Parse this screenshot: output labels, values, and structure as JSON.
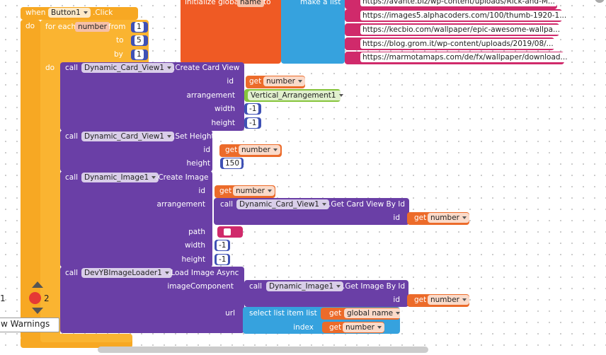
{
  "global_var": {
    "keyword": "initialize global",
    "name": "name",
    "to": "to",
    "make_list": "make a list",
    "items": [
      "https://avante.biz/wp-content/uploads/Rick-and-M...",
      "https://images5.alphacoders.com/100/thumb-1920-1...",
      "https://kecbio.com/wallpaper/epic-awesome-wallpa...",
      "https://blog.grom.it/wp-content/uploads/2019/08/...",
      "https://marmotamaps.com/de/fx/wallpaper/download..."
    ]
  },
  "event": {
    "when": "when",
    "component": "Button1",
    "event": ".Click",
    "do": "do"
  },
  "for_each": {
    "keyword": "for each",
    "variable": "number",
    "from_label": "from",
    "from": "1",
    "to_label": "to",
    "to": "5",
    "by_label": "by",
    "by": "1",
    "do": "do"
  },
  "create_card": {
    "call": "call",
    "component": "Dynamic_Card_View1",
    "method": ".Create Card View",
    "id_label": "id",
    "id_get": "get",
    "id_var": "number",
    "arrangement_label": "arrangement",
    "arrangement": "Vertical_Arrangement1",
    "width_label": "width",
    "width": "-1",
    "height_label": "height",
    "height": "-1"
  },
  "set_height": {
    "call": "call",
    "component": "Dynamic_Card_View1",
    "method": ".Set Height",
    "id_label": "id",
    "id_get": "get",
    "id_var": "number",
    "height_label": "height",
    "height": "150"
  },
  "create_image": {
    "call": "call",
    "component": "Dynamic_Image1",
    "method": ".Create Image",
    "id_label": "id",
    "id_get": "get",
    "id_var": "number",
    "arrangement_label": "arrangement",
    "arr_call": "call",
    "arr_component": "Dynamic_Card_View1",
    "arr_method": ".Get Card View By Id",
    "arr_id_label": "id",
    "arr_id_get": "get",
    "arr_id_var": "number",
    "path_label": "path",
    "width_label": "width",
    "width": "-1",
    "height_label": "height",
    "height": "-1"
  },
  "load_image": {
    "call": "call",
    "component": "DevYBImageLoader1",
    "method": ".Load Image Async",
    "image_label": "imageComponent",
    "img_call": "call",
    "img_component": "Dynamic_Image1",
    "img_method": ".Get Image By Id",
    "img_id_label": "id",
    "img_id_get": "get",
    "img_id_var": "number",
    "url_label": "url",
    "select": "select list item  list",
    "list_get": "get",
    "list_var": "global name",
    "index_label": "index",
    "index_get": "get",
    "index_var": "number"
  },
  "sidebar": {
    "count": "1",
    "warnings_count": "2",
    "warnings_button": "w Warnings"
  }
}
